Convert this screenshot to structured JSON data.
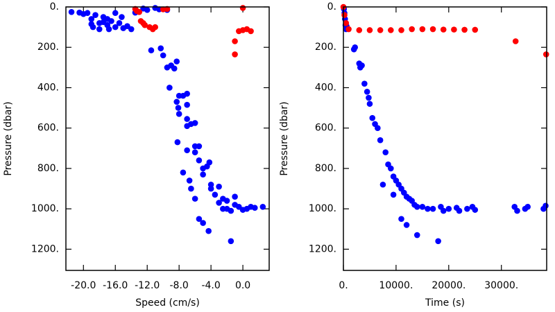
{
  "chart_data": [
    {
      "type": "scatter",
      "xlabel": "Speed (cm/s)",
      "ylabel": "Pressure (dbar)",
      "xlim": [
        -22.2,
        3.3
      ],
      "ylim": [
        1305,
        0
      ],
      "xticks": [
        {
          "value": -20,
          "label": "-20.0"
        },
        {
          "value": -16,
          "label": "-16.0"
        },
        {
          "value": -12,
          "label": "-12.0"
        },
        {
          "value": -8,
          "label": "-8.0"
        },
        {
          "value": -4,
          "label": "-4.0"
        },
        {
          "value": 0,
          "label": "0.0"
        }
      ],
      "yticks": [
        {
          "value": 0,
          "label": "0."
        },
        {
          "value": 200,
          "label": "200."
        },
        {
          "value": 400,
          "label": "400."
        },
        {
          "value": 600,
          "label": "600."
        },
        {
          "value": 800,
          "label": "800."
        },
        {
          "value": 1000,
          "label": "1000."
        },
        {
          "value": 1200,
          "label": "1200."
        }
      ],
      "series": [
        {
          "color": "#0000ff",
          "x": [
            -21.5,
            -20.5,
            -19.5,
            -18.5,
            -17.5,
            -17,
            -16.5,
            -18,
            -17,
            -16,
            -15,
            -14.5,
            -19,
            -18.8,
            -18,
            -16.8,
            -15.5,
            -14,
            -20,
            -16,
            -13.5,
            -17.5,
            -19,
            -15.2,
            -12,
            -10.5,
            -9.5,
            -11,
            -12.5,
            -11.5,
            -10.3,
            -9.5,
            -9,
            -8.6,
            -8.3,
            -10,
            -9.2,
            -8,
            -7.5,
            -7,
            -8.3,
            -8.1,
            -8,
            -7,
            -7,
            -6.5,
            -6,
            -7,
            -8.2,
            -7,
            -6,
            -5.5,
            -6,
            -5.5,
            -5,
            -4.5,
            -4.2,
            -5,
            -7.5,
            -6.7,
            -4,
            -3,
            -3.5,
            -2.5,
            -2,
            -1,
            -0.5,
            0.5,
            1,
            1.5,
            2.5,
            -2,
            -1.5,
            -3,
            -6.5,
            -6,
            -5.5,
            -5,
            -4.3,
            -1.5,
            -1,
            0,
            -4,
            -2.5
          ],
          "y": [
            25,
            28,
            30,
            40,
            50,
            60,
            70,
            80,
            90,
            100,
            105,
            95,
            60,
            100,
            110,
            110,
            80,
            110,
            35,
            30,
            28,
            75,
            85,
            50,
            15,
            12,
            15,
            5,
            8,
            215,
            205,
            300,
            290,
            305,
            270,
            240,
            400,
            440,
            440,
            430,
            470,
            500,
            530,
            485,
            555,
            580,
            575,
            590,
            670,
            710,
            690,
            690,
            720,
            760,
            800,
            790,
            770,
            830,
            820,
            860,
            880,
            890,
            930,
            950,
            960,
            980,
            990,
            1000,
            990,
            995,
            990,
            1000,
            1010,
            970,
            900,
            950,
            1050,
            1070,
            1110,
            1160,
            940,
            1005,
            900,
            1000
          ]
        },
        {
          "color": "#ff0000",
          "x": [
            -13.3,
            -13,
            -12.8,
            -12.5,
            -12.3,
            -11.7,
            -11.3,
            -11,
            -10,
            -13.5,
            0,
            -0.5,
            0,
            0.5,
            1,
            -1,
            -1,
            -9.5
          ],
          "y": [
            20,
            25,
            70,
            80,
            90,
            100,
            110,
            100,
            12,
            10,
            5,
            120,
            115,
            110,
            120,
            170,
            235,
            10
          ]
        }
      ]
    },
    {
      "type": "scatter",
      "xlabel": "Time (s)",
      "ylabel": "Pressure (dbar)",
      "xlim": [
        0,
        38600
      ],
      "ylim": [
        1305,
        0
      ],
      "xticks": [
        {
          "value": 0,
          "label": "0."
        },
        {
          "value": 10000,
          "label": "10000."
        },
        {
          "value": 20000,
          "label": "20000."
        },
        {
          "value": 30000,
          "label": "30000."
        }
      ],
      "yticks": [
        {
          "value": 0,
          "label": "0."
        },
        {
          "value": 200,
          "label": "200."
        },
        {
          "value": 400,
          "label": "400."
        },
        {
          "value": 600,
          "label": "600."
        },
        {
          "value": 800,
          "label": "800."
        },
        {
          "value": 1000,
          "label": "1000."
        },
        {
          "value": 1200,
          "label": "1200."
        }
      ],
      "series": [
        {
          "color": "#0000ff",
          "x": [
            100,
            200,
            300,
            400,
            500,
            600,
            2000,
            2200,
            3000,
            3200,
            3500,
            4000,
            4500,
            4800,
            5000,
            5500,
            6000,
            6500,
            7000,
            8000,
            8500,
            9000,
            9500,
            10000,
            10500,
            11000,
            11500,
            12000,
            12500,
            13000,
            13500,
            14000,
            15000,
            16000,
            17000,
            18500,
            19000,
            20000,
            21500,
            22000,
            23500,
            24500,
            25000,
            32500,
            33000,
            34500,
            35000,
            38000,
            38400,
            7500,
            9500,
            11000,
            12000,
            14000,
            18000
          ],
          "y": [
            10,
            30,
            60,
            90,
            110,
            95,
            210,
            200,
            280,
            300,
            290,
            380,
            420,
            450,
            480,
            550,
            580,
            600,
            660,
            720,
            780,
            800,
            840,
            860,
            880,
            900,
            920,
            940,
            950,
            960,
            980,
            990,
            990,
            1000,
            1000,
            990,
            1010,
            1000,
            995,
            1010,
            1000,
            990,
            1005,
            990,
            1010,
            1000,
            990,
            1000,
            985,
            880,
            930,
            1050,
            1080,
            1130,
            1160
          ]
        },
        {
          "color": "#ff0000",
          "x": [
            0,
            200,
            500,
            1000,
            3000,
            5000,
            7000,
            9000,
            11000,
            13000,
            15000,
            17000,
            19000,
            21000,
            23000,
            25000,
            32700,
            38500
          ],
          "y": [
            0,
            40,
            80,
            110,
            115,
            115,
            115,
            115,
            115,
            110,
            110,
            110,
            112,
            112,
            113,
            113,
            170,
            235
          ]
        }
      ]
    }
  ]
}
